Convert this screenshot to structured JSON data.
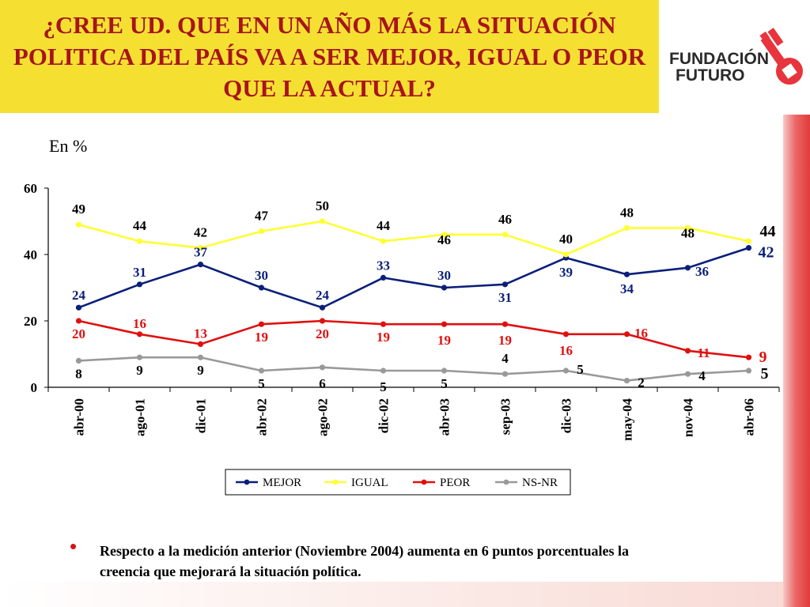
{
  "header": {
    "title": "¿CREE UD. QUE EN UN AÑO MÁS LA SITUACIÓN POLITICA DEL PAÍS VA A SER MEJOR, IGUAL O PEOR QUE LA ACTUAL?"
  },
  "logo": {
    "line1": "FUNDACIÓN",
    "line2": "FUTURO"
  },
  "unit_label": "En %",
  "chart_data": {
    "type": "line",
    "categories": [
      "abr-00",
      "ago-01",
      "dic-01",
      "abr-02",
      "ago-02",
      "dic-02",
      "abr-03",
      "sep-03",
      "dic-03",
      "may-04",
      "nov-04",
      "abr-06"
    ],
    "ylim": [
      0,
      60
    ],
    "yticks": [
      0,
      20,
      40,
      60
    ],
    "grid": false,
    "legend_position": "bottom",
    "series": [
      {
        "name": "MEJOR",
        "color": "#0b1f7a",
        "values": [
          24,
          31,
          37,
          30,
          24,
          33,
          30,
          31,
          39,
          34,
          36,
          42
        ]
      },
      {
        "name": "IGUAL",
        "color": "#ffff33",
        "values": [
          49,
          44,
          42,
          47,
          50,
          44,
          46,
          46,
          40,
          48,
          48,
          44
        ]
      },
      {
        "name": "PEOR",
        "color": "#e01010",
        "values": [
          20,
          16,
          13,
          19,
          20,
          19,
          19,
          19,
          16,
          16,
          11,
          9
        ]
      },
      {
        "name": "NS-NR",
        "color": "#999999",
        "values": [
          8,
          9,
          9,
          5,
          6,
          5,
          5,
          4,
          5,
          2,
          4,
          5
        ]
      }
    ]
  },
  "colors": {
    "title_bg": "#f5e032",
    "title_text": "#a8141c",
    "accent_red": "#e23a3a",
    "label_igual": "#000000",
    "label_nsnr": "#000000"
  },
  "note": {
    "text": "Respecto a la medición anterior (Noviembre 2004) aumenta en 6 puntos porcentuales la creencia que mejorará la situación política."
  }
}
